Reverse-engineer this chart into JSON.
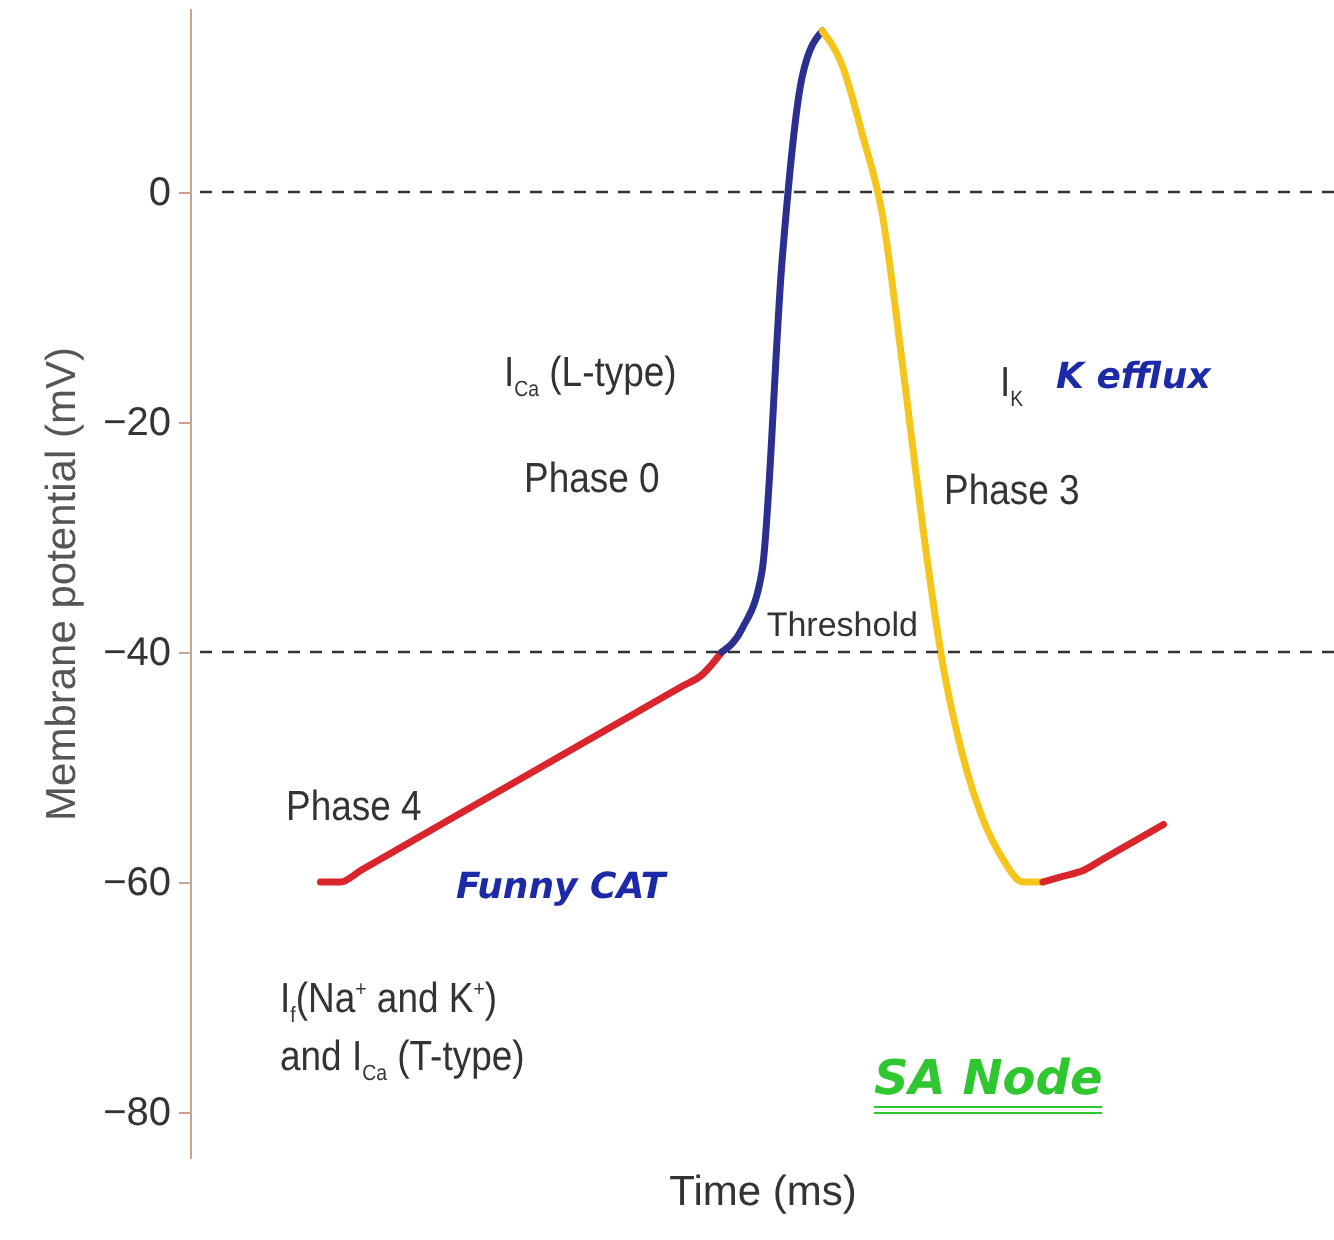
{
  "chart_data": {
    "type": "line",
    "ylabel": "Membrane potential (mV)",
    "xlabel": "Time (ms)",
    "categories": [
      null,
      null,
      null,
      null,
      null,
      null,
      null,
      null,
      null,
      null,
      null,
      null,
      null,
      null,
      null,
      null,
      null,
      null,
      null,
      null,
      null,
      null,
      null,
      null,
      null,
      null,
      null,
      null,
      null,
      null,
      null,
      null,
      null,
      null,
      null,
      null,
      null,
      null,
      null,
      null,
      null,
      null,
      null,
      null,
      null,
      null,
      null,
      null,
      null,
      null,
      null,
      null,
      null,
      null,
      null,
      null,
      null
    ],
    "series": [
      {
        "color": "#d9252b",
        "values": [
          null,
          null,
          null,
          null,
          null,
          null,
          -60,
          -60,
          -59,
          -58,
          -57,
          -56,
          -55,
          -54,
          -53,
          -52,
          -51,
          -50,
          -49,
          -48,
          -47,
          -46,
          -45,
          -44,
          -43,
          -42,
          -40,
          null,
          null,
          null,
          null,
          null,
          null,
          null,
          null,
          null,
          null,
          null,
          null,
          null,
          null,
          null,
          null,
          null,
          null,
          null,
          null,
          null,
          null,
          null,
          null,
          null,
          null,
          null,
          null,
          null,
          null
        ]
      },
      {
        "color": "#2b2f8f",
        "values": [
          null,
          null,
          null,
          null,
          null,
          null,
          null,
          null,
          null,
          null,
          null,
          null,
          null,
          null,
          null,
          null,
          null,
          null,
          null,
          null,
          null,
          null,
          null,
          null,
          null,
          null,
          -40,
          -38,
          -33,
          -6,
          10,
          14,
          null,
          null,
          null,
          null,
          null,
          null,
          null,
          null,
          null,
          null,
          null,
          null,
          null,
          null,
          null,
          null,
          null,
          null,
          null,
          null,
          null,
          null,
          null,
          null,
          null
        ]
      },
      {
        "color": "#f5c51b",
        "values": [
          null,
          null,
          null,
          null,
          null,
          null,
          null,
          null,
          null,
          null,
          null,
          null,
          null,
          null,
          null,
          null,
          null,
          null,
          null,
          null,
          null,
          null,
          null,
          null,
          null,
          null,
          null,
          null,
          null,
          null,
          null,
          14,
          11,
          5,
          -2,
          -15,
          -29,
          -41,
          -49,
          -54.5,
          -58,
          -60,
          -60,
          null,
          null,
          null,
          null,
          null,
          null,
          null,
          null,
          null,
          null,
          null,
          null,
          null,
          null
        ]
      },
      {
        "color": "#d9252b",
        "values": [
          null,
          null,
          null,
          null,
          null,
          null,
          null,
          null,
          null,
          null,
          null,
          null,
          null,
          null,
          null,
          null,
          null,
          null,
          null,
          null,
          null,
          null,
          null,
          null,
          null,
          null,
          null,
          null,
          null,
          null,
          null,
          null,
          null,
          null,
          null,
          null,
          null,
          null,
          null,
          null,
          null,
          null,
          -60,
          -59.5,
          -59,
          -58,
          -57,
          -56,
          -55,
          null,
          null,
          null,
          null,
          null,
          null,
          null,
          null
        ]
      }
    ],
    "ylim": [
      -84,
      16
    ],
    "yticks": [
      0,
      -20,
      -40,
      -60,
      -80
    ],
    "ref_lines": [
      {
        "axis": "y",
        "value": 0,
        "line_style": "dashed",
        "color": "#333333"
      },
      {
        "axis": "y",
        "value": -40,
        "label": "Threshold",
        "line_style": "dashed",
        "color": "#333333"
      }
    ],
    "annotations": [
      "I$_{Ca}$ (L-type)",
      "Phase 0",
      "I$_{K}$",
      "K efflux",
      "Phase 3",
      "Phase 4",
      "Funny CAT",
      "I$_{f}$(Na$^{+}$ and K$^{+}$)",
      "and I$_{Ca}$ (T-type)",
      "SA Node"
    ],
    "marker": "none",
    "line_style": "solid",
    "grid": false
  }
}
